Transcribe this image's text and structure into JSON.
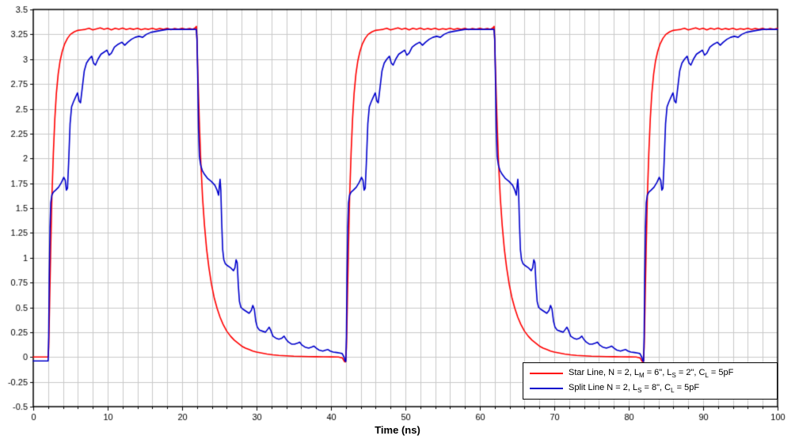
{
  "chart_data": {
    "type": "line",
    "title": "",
    "xlabel": "Time (ns)",
    "ylabel": "",
    "xlim": [
      0,
      100
    ],
    "ylim": [
      -0.5,
      3.5
    ],
    "x_ticks": [
      0,
      10,
      20,
      30,
      40,
      50,
      60,
      70,
      80,
      90,
      100
    ],
    "x_tick_labels": [
      "0",
      "10",
      "20",
      "30",
      "40",
      "50",
      "60",
      "70",
      "80",
      "90",
      "100"
    ],
    "x_minor_grid": 2,
    "y_tick_step": 0.25,
    "y_ticks": [
      -0.5,
      -0.25,
      0,
      0.25,
      0.5,
      0.75,
      1,
      1.25,
      1.5,
      1.75,
      2,
      2.25,
      2.5,
      2.75,
      3,
      3.25,
      3.5
    ],
    "y_tick_labels": [
      "-0.5",
      "-0.25",
      "0",
      "0.25",
      "0.5",
      "0.75",
      "1",
      "1.25",
      "1.5",
      "1.75",
      "2",
      "2.25",
      "2.5",
      "2.75",
      "3",
      "3.25",
      "3.5"
    ],
    "grid": true,
    "grid_color": "#c9c9c9",
    "axis_color": "#000000",
    "background": "#ffffff",
    "legend_position": "bottom-right",
    "signal_high_level": 3.3,
    "signal_low_level": 0,
    "period_ns": 40,
    "series": [
      {
        "key": "star-line",
        "name": "Star Line, N = 2, LM = 6\", LS = 2\", CL = 5pF",
        "label_parts": [
          {
            "t": "Star Line, N = 2, L"
          },
          {
            "s": "M"
          },
          {
            "t": " = 6\", L"
          },
          {
            "s": "S"
          },
          {
            "t": " = 2\", C"
          },
          {
            "s": "L"
          },
          {
            "t": " = 5pF"
          }
        ],
        "color": "#ff0000",
        "line_width": 1.6,
        "pre_points": [
          [
            0,
            0
          ],
          [
            1.95,
            0
          ]
        ],
        "cycle_starts": [
          2,
          42,
          82
        ],
        "period_points": [
          [
            0,
            0
          ],
          [
            0.08,
            0.1
          ],
          [
            0.2,
            0.55
          ],
          [
            0.35,
            1.1
          ],
          [
            0.5,
            1.6
          ],
          [
            0.7,
            2.05
          ],
          [
            0.9,
            2.4
          ],
          [
            1.1,
            2.65
          ],
          [
            1.35,
            2.85
          ],
          [
            1.6,
            2.98
          ],
          [
            1.9,
            3.08
          ],
          [
            2.2,
            3.15
          ],
          [
            2.6,
            3.21
          ],
          [
            3.0,
            3.25
          ],
          [
            3.5,
            3.275
          ],
          [
            4.0,
            3.29
          ],
          [
            4.5,
            3.295
          ],
          [
            5.0,
            3.3
          ],
          [
            5.5,
            3.31
          ],
          [
            6.0,
            3.295
          ],
          [
            6.5,
            3.305
          ],
          [
            7.0,
            3.315
          ],
          [
            7.5,
            3.3
          ],
          [
            8.0,
            3.31
          ],
          [
            8.5,
            3.295
          ],
          [
            9.0,
            3.31
          ],
          [
            9.5,
            3.3
          ],
          [
            10.0,
            3.312
          ],
          [
            10.5,
            3.298
          ],
          [
            11.0,
            3.308
          ],
          [
            11.5,
            3.3
          ],
          [
            12.0,
            3.31
          ],
          [
            12.5,
            3.297
          ],
          [
            13.0,
            3.307
          ],
          [
            13.5,
            3.3
          ],
          [
            14.0,
            3.31
          ],
          [
            14.5,
            3.298
          ],
          [
            15.0,
            3.308
          ],
          [
            15.5,
            3.3
          ],
          [
            16.0,
            3.31
          ],
          [
            16.5,
            3.297
          ],
          [
            17.0,
            3.308
          ],
          [
            17.5,
            3.3
          ],
          [
            18.0,
            3.31
          ],
          [
            18.5,
            3.3
          ],
          [
            19.0,
            3.308
          ],
          [
            19.4,
            3.3
          ],
          [
            19.75,
            3.315
          ],
          [
            19.92,
            3.33
          ],
          [
            20.0,
            3.18
          ],
          [
            20.12,
            2.85
          ],
          [
            20.3,
            2.4
          ],
          [
            20.5,
            1.98
          ],
          [
            20.75,
            1.6
          ],
          [
            21.0,
            1.33
          ],
          [
            21.3,
            1.08
          ],
          [
            21.6,
            0.9
          ],
          [
            21.95,
            0.73
          ],
          [
            22.3,
            0.6
          ],
          [
            22.7,
            0.49
          ],
          [
            23.1,
            0.4
          ],
          [
            23.5,
            0.33
          ],
          [
            24.0,
            0.26
          ],
          [
            24.5,
            0.21
          ],
          [
            25.0,
            0.17
          ],
          [
            25.5,
            0.14
          ],
          [
            26.0,
            0.11
          ],
          [
            26.5,
            0.09
          ],
          [
            27.0,
            0.075
          ],
          [
            27.5,
            0.06
          ],
          [
            28.0,
            0.05
          ],
          [
            28.7,
            0.04
          ],
          [
            29.4,
            0.03
          ],
          [
            30.2,
            0.022
          ],
          [
            31.0,
            0.016
          ],
          [
            32.0,
            0.012
          ],
          [
            33.0,
            0.008
          ],
          [
            34.0,
            0.006
          ],
          [
            35.0,
            0.004
          ],
          [
            36.0,
            0.003
          ],
          [
            37.0,
            0.002
          ],
          [
            38.0,
            0.001
          ],
          [
            39.0,
            0
          ],
          [
            39.55,
            -0.01
          ],
          [
            39.8,
            -0.045
          ],
          [
            39.95,
            -0.05
          ],
          [
            40,
            -0.02
          ]
        ]
      },
      {
        "key": "split-line",
        "name": "Split Line N = 2, LS = 8\", CL = 5pF",
        "label_parts": [
          {
            "t": "Split Line N = 2, L"
          },
          {
            "s": "S"
          },
          {
            "t": " = 8\", C"
          },
          {
            "s": "L"
          },
          {
            "t": " = 5pF"
          }
        ],
        "color": "#0000cc",
        "line_width": 1.6,
        "pre_points": [
          [
            0,
            -0.04
          ],
          [
            1.95,
            -0.04
          ]
        ],
        "cycle_starts": [
          2,
          42,
          82
        ],
        "period_points": [
          [
            0,
            -0.04
          ],
          [
            0.07,
            0.2
          ],
          [
            0.15,
            0.8
          ],
          [
            0.25,
            1.3
          ],
          [
            0.35,
            1.55
          ],
          [
            0.5,
            1.63
          ],
          [
            0.7,
            1.66
          ],
          [
            1.0,
            1.68
          ],
          [
            1.4,
            1.71
          ],
          [
            1.8,
            1.76
          ],
          [
            2.1,
            1.81
          ],
          [
            2.3,
            1.78
          ],
          [
            2.45,
            1.68
          ],
          [
            2.6,
            1.7
          ],
          [
            2.75,
            1.95
          ],
          [
            2.95,
            2.35
          ],
          [
            3.15,
            2.52
          ],
          [
            3.4,
            2.57
          ],
          [
            3.7,
            2.62
          ],
          [
            3.95,
            2.66
          ],
          [
            4.15,
            2.58
          ],
          [
            4.35,
            2.56
          ],
          [
            4.6,
            2.72
          ],
          [
            4.85,
            2.88
          ],
          [
            5.15,
            2.96
          ],
          [
            5.5,
            3.0
          ],
          [
            5.85,
            3.03
          ],
          [
            6.1,
            2.96
          ],
          [
            6.35,
            2.94
          ],
          [
            6.7,
            3.0
          ],
          [
            7.1,
            3.05
          ],
          [
            7.5,
            3.07
          ],
          [
            7.9,
            3.09
          ],
          [
            8.2,
            3.04
          ],
          [
            8.5,
            3.06
          ],
          [
            8.9,
            3.12
          ],
          [
            9.4,
            3.15
          ],
          [
            9.9,
            3.17
          ],
          [
            10.3,
            3.14
          ],
          [
            10.7,
            3.17
          ],
          [
            11.2,
            3.2
          ],
          [
            11.7,
            3.22
          ],
          [
            12.2,
            3.23
          ],
          [
            12.7,
            3.22
          ],
          [
            13.2,
            3.25
          ],
          [
            13.8,
            3.27
          ],
          [
            14.5,
            3.28
          ],
          [
            15.2,
            3.29
          ],
          [
            16.0,
            3.3
          ],
          [
            17.0,
            3.3
          ],
          [
            18.0,
            3.3
          ],
          [
            19.0,
            3.3
          ],
          [
            19.9,
            3.3
          ],
          [
            20.0,
            3.2
          ],
          [
            20.1,
            2.8
          ],
          [
            20.2,
            2.3
          ],
          [
            20.32,
            2.02
          ],
          [
            20.5,
            1.93
          ],
          [
            20.7,
            1.88
          ],
          [
            21.0,
            1.84
          ],
          [
            21.4,
            1.8
          ],
          [
            21.9,
            1.77
          ],
          [
            22.4,
            1.73
          ],
          [
            22.7,
            1.68
          ],
          [
            22.9,
            1.63
          ],
          [
            23.0,
            1.72
          ],
          [
            23.1,
            1.79
          ],
          [
            23.2,
            1.68
          ],
          [
            23.32,
            1.35
          ],
          [
            23.45,
            1.08
          ],
          [
            23.6,
            0.98
          ],
          [
            23.8,
            0.94
          ],
          [
            24.1,
            0.92
          ],
          [
            24.5,
            0.9
          ],
          [
            24.9,
            0.87
          ],
          [
            25.1,
            0.9
          ],
          [
            25.25,
            0.98
          ],
          [
            25.4,
            0.95
          ],
          [
            25.55,
            0.72
          ],
          [
            25.7,
            0.56
          ],
          [
            25.9,
            0.5
          ],
          [
            26.2,
            0.48
          ],
          [
            26.6,
            0.46
          ],
          [
            27.0,
            0.44
          ],
          [
            27.3,
            0.47
          ],
          [
            27.5,
            0.52
          ],
          [
            27.7,
            0.48
          ],
          [
            27.9,
            0.36
          ],
          [
            28.1,
            0.3
          ],
          [
            28.4,
            0.27
          ],
          [
            28.8,
            0.26
          ],
          [
            29.2,
            0.25
          ],
          [
            29.5,
            0.28
          ],
          [
            29.7,
            0.3
          ],
          [
            29.9,
            0.27
          ],
          [
            30.2,
            0.21
          ],
          [
            30.6,
            0.19
          ],
          [
            31.0,
            0.18
          ],
          [
            31.4,
            0.19
          ],
          [
            31.7,
            0.21
          ],
          [
            31.95,
            0.18
          ],
          [
            32.3,
            0.15
          ],
          [
            32.7,
            0.13
          ],
          [
            33.1,
            0.13
          ],
          [
            33.5,
            0.14
          ],
          [
            33.8,
            0.15
          ],
          [
            34.1,
            0.12
          ],
          [
            34.5,
            0.1
          ],
          [
            35.0,
            0.09
          ],
          [
            35.4,
            0.1
          ],
          [
            35.7,
            0.11
          ],
          [
            36.0,
            0.09
          ],
          [
            36.4,
            0.07
          ],
          [
            36.9,
            0.06
          ],
          [
            37.3,
            0.07
          ],
          [
            37.6,
            0.075
          ],
          [
            37.9,
            0.06
          ],
          [
            38.3,
            0.05
          ],
          [
            38.8,
            0.045
          ],
          [
            39.2,
            0.04
          ],
          [
            39.5,
            0.035
          ],
          [
            39.75,
            0
          ],
          [
            39.9,
            -0.04
          ],
          [
            40,
            -0.045
          ]
        ]
      }
    ]
  }
}
